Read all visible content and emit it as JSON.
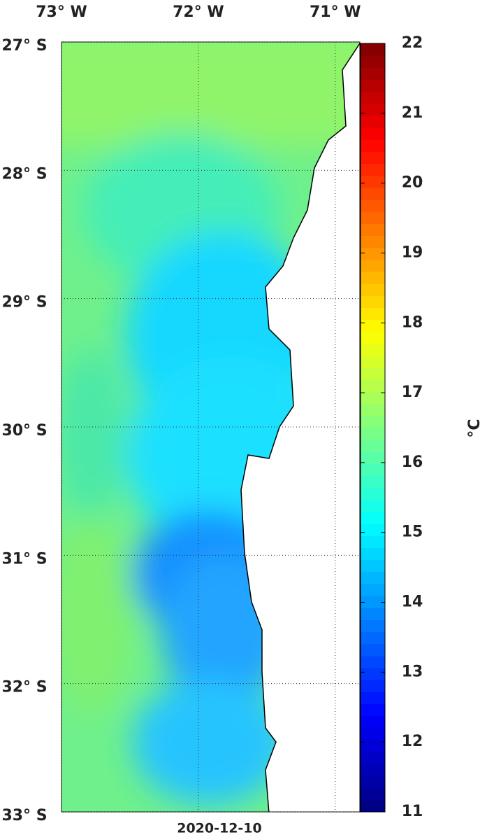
{
  "map": {
    "lon_ticks": [
      {
        "value": -73,
        "label": "73° W"
      },
      {
        "value": -72,
        "label": "72° W"
      },
      {
        "value": -71,
        "label": "71° W"
      }
    ],
    "lat_ticks": [
      {
        "value": -27,
        "label": "27° S"
      },
      {
        "value": -28,
        "label": "28° S"
      },
      {
        "value": -29,
        "label": "29° S"
      },
      {
        "value": -30,
        "label": "30° S"
      },
      {
        "value": -31,
        "label": "31° S"
      },
      {
        "value": -32,
        "label": "32° S"
      },
      {
        "value": -33,
        "label": "33° S"
      }
    ],
    "lon_range": [
      -73,
      -70.82
    ],
    "lat_range": [
      -27,
      -33
    ],
    "colorbar": {
      "range": [
        11,
        22
      ],
      "ticks": [
        11,
        12,
        13,
        14,
        15,
        16,
        17,
        18,
        19,
        20,
        21,
        22
      ],
      "unit": "°C"
    },
    "date": "2020-12-10"
  }
}
